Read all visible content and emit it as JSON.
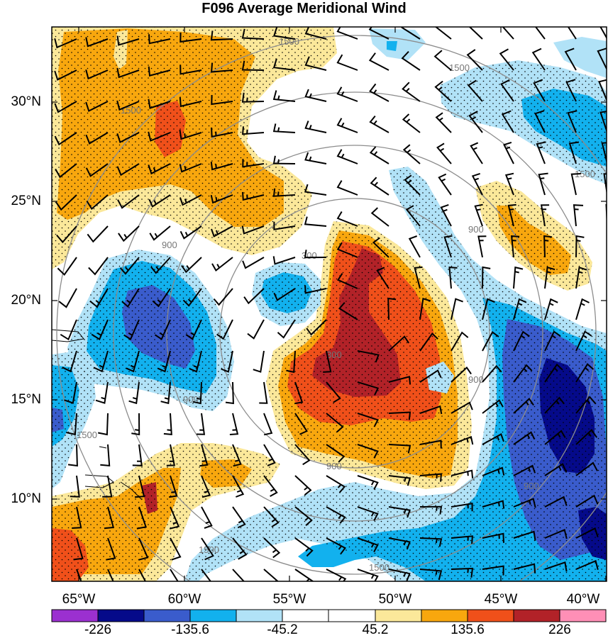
{
  "title": "F096 Average Meridional Wind",
  "map": {
    "lat_labels": [
      "30°N",
      "25°N",
      "20°N",
      "15°N",
      "10°N"
    ],
    "lon_labels": [
      "65°W",
      "60°W",
      "55°W",
      "50°W",
      "45°W",
      "40°W"
    ],
    "contour_labels": [
      "1500",
      "1500",
      "1500",
      "1500",
      "900",
      "900",
      "900",
      "900",
      "900",
      "300",
      "300",
      "900",
      "1500",
      "1500",
      "1500"
    ],
    "layers": [
      "shaded meridional wind",
      "stippling",
      "range rings",
      "wind barbs"
    ]
  },
  "colorbar": {
    "labels": [
      "-226",
      "-135.6",
      "-45.2",
      "45.2",
      "135.6",
      "226"
    ],
    "colors": [
      "#9b30d0",
      "#050a8a",
      "#3a5ccc",
      "#12b1ee",
      "#b1e2f7",
      "#ffffff",
      "#fbe89a",
      "#f8a70e",
      "#f0501a",
      "#b22228",
      "#ff8fb6"
    ]
  }
}
